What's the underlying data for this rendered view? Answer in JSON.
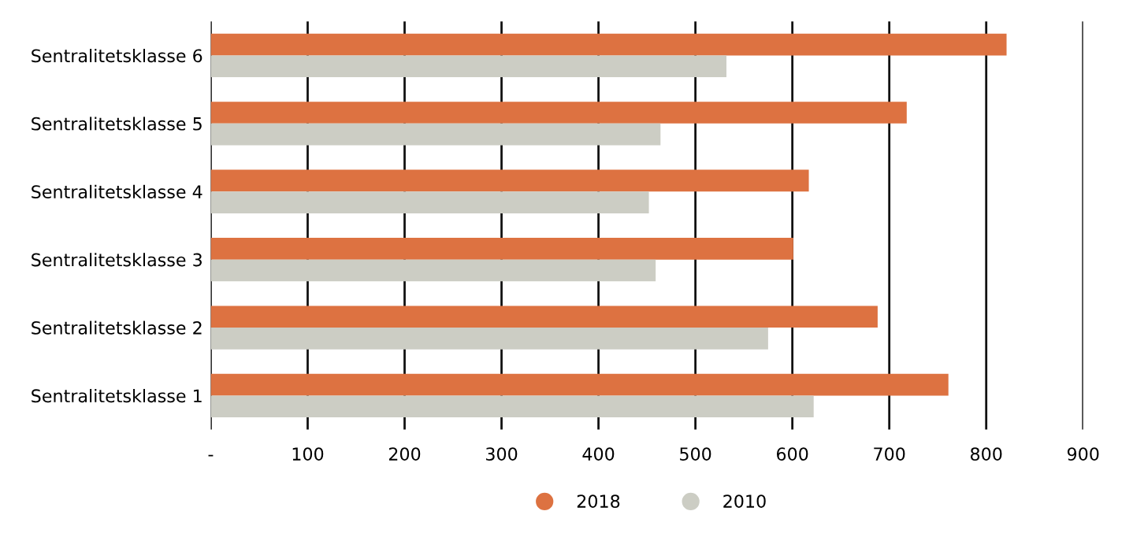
{
  "chart_data": {
    "type": "bar",
    "orientation": "horizontal",
    "categories": [
      "Sentralitetsklasse 6",
      "Sentralitetsklasse 5",
      "Sentralitetsklasse 4",
      "Sentralitetsklasse 3",
      "Sentralitetsklasse 2",
      "Sentralitetsklasse 1"
    ],
    "series": [
      {
        "name": "2018",
        "color": "#dd7241",
        "values": [
          821,
          718,
          617,
          601,
          688,
          761
        ]
      },
      {
        "name": "2010",
        "color": "#cccdc4",
        "values": [
          532,
          464,
          452,
          459,
          575,
          622
        ]
      }
    ],
    "xlim": [
      0,
      900
    ],
    "xticks": [
      {
        "value": 0,
        "label": "-"
      },
      100,
      200,
      300,
      400,
      500,
      600,
      700,
      800,
      900
    ],
    "grid": "x",
    "legend": "bottom"
  }
}
